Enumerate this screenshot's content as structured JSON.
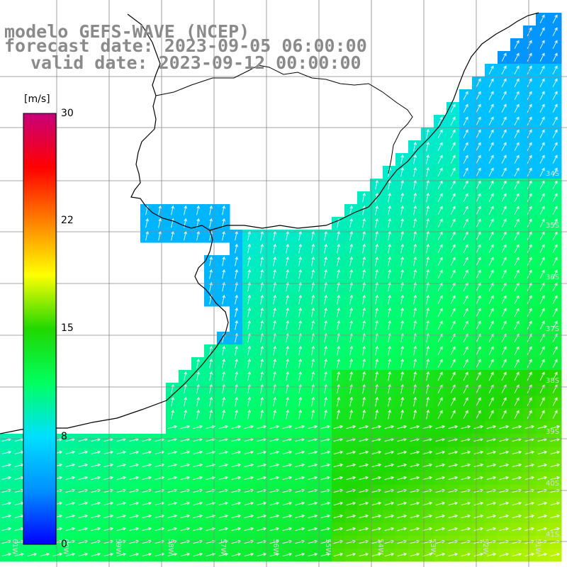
{
  "title": {
    "line1": "modelo GEFS-WAVE (NCEP)",
    "line2": "forecast date: 2023-09-05 06:00:00",
    "line3": "valid date: 2023-09-12 00:00:00"
  },
  "colorbar": {
    "unit": "[m/s]",
    "ticks": [
      "30",
      "22",
      "15",
      "8",
      "0"
    ],
    "stops": [
      "#0000ff",
      "#0090ff",
      "#00e0ff",
      "#00ff60",
      "#20d800",
      "#ffff00",
      "#ff8000",
      "#ff0000",
      "#c8007a"
    ]
  },
  "grid": {
    "lat_labels": [
      "34S",
      "35S",
      "36S",
      "37S",
      "38S",
      "39S",
      "40S",
      "41S"
    ],
    "lon_labels": [
      "61W",
      "60W",
      "59W",
      "58W",
      "57W",
      "56W",
      "55W",
      "54W",
      "53W",
      "52W",
      "51W"
    ]
  },
  "colors": {
    "land": "#ffffff",
    "coast": "#000000",
    "grid": "#808080",
    "arrow": "#ffffff"
  }
}
